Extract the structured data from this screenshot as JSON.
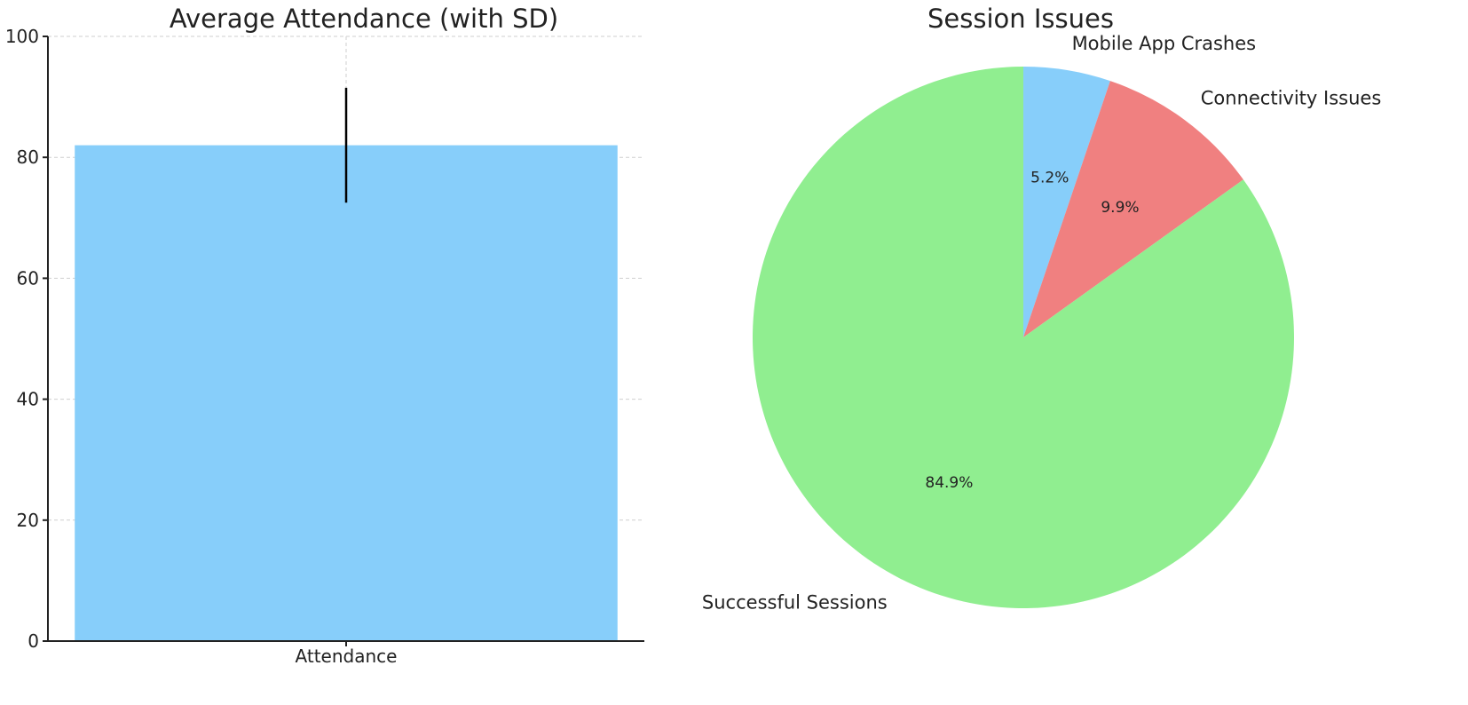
{
  "chart_data": [
    {
      "type": "bar",
      "title": "Average Attendance (with SD)",
      "categories": [
        "Attendance"
      ],
      "values": [
        82
      ],
      "error": [
        9.5
      ],
      "ylim": [
        0,
        100
      ],
      "yticks": [
        0,
        20,
        40,
        60,
        80,
        100
      ],
      "xlabel": "",
      "ylabel": "",
      "grid": true,
      "colors": {
        "bar": "#87CEFA",
        "error_bar": "#000000"
      }
    },
    {
      "type": "pie",
      "title": "Session Issues",
      "slices": [
        {
          "label": "Mobile App Crashes",
          "value": 5.2,
          "pct_label": "5.2%",
          "color": "#87CEFA"
        },
        {
          "label": "Connectivity Issues",
          "value": 9.9,
          "pct_label": "9.9%",
          "color": "#F08080"
        },
        {
          "label": "Successful Sessions",
          "value": 84.9,
          "pct_label": "84.9%",
          "color": "#90EE90"
        }
      ],
      "start": "top",
      "direction": "clockwise"
    }
  ]
}
